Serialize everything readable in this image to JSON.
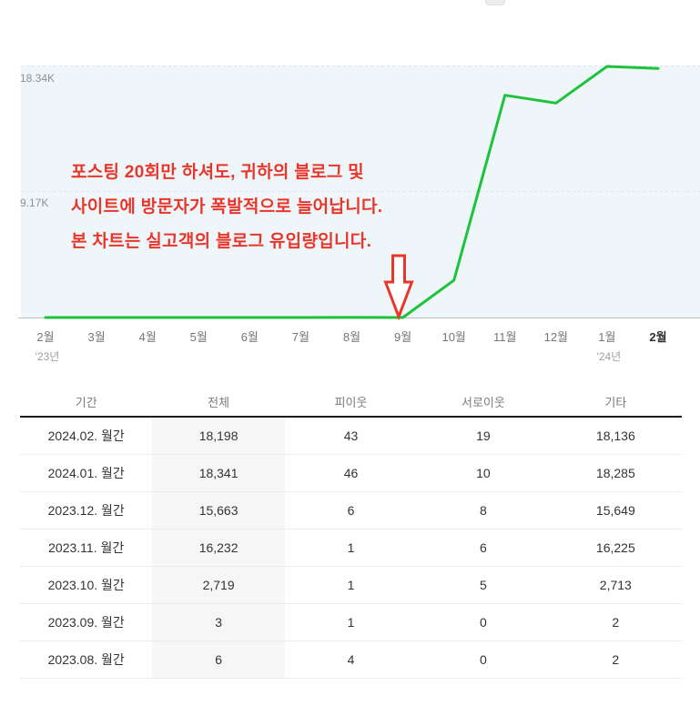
{
  "colors": {
    "line": "#1ec23b",
    "annotation_red": "#e9362b",
    "chart_bg": "#eef6f9",
    "gridline": "#dde5e8",
    "axis_line": "#b7bcbe",
    "table_header_border": "#1b1b1b",
    "highlight_column_bg": "#f6f6f6"
  },
  "chart_data": {
    "type": "line",
    "title": "",
    "xlabel": "",
    "ylabel": "",
    "categories": [
      "2023.02",
      "2023.03",
      "2023.04",
      "2023.05",
      "2023.06",
      "2023.07",
      "2023.08",
      "2023.09",
      "2023.10",
      "2023.11",
      "2023.12",
      "2024.01",
      "2024.02"
    ],
    "x_tick_labels": [
      "2월",
      "3월",
      "4월",
      "5월",
      "6월",
      "7월",
      "8월",
      "9월",
      "10월",
      "11월",
      "12월",
      "1월",
      "2월"
    ],
    "x_bold_index": 12,
    "x_year_labels": [
      {
        "text": "'23년",
        "index": 0
      },
      {
        "text": "'24년",
        "index": 11
      }
    ],
    "values": [
      0,
      0,
      0,
      0,
      0,
      0,
      6,
      3,
      2719,
      16232,
      15663,
      18341,
      18198
    ],
    "ylim": [
      0,
      18341
    ],
    "y_gridlines": [
      {
        "label": "18.34K",
        "value": 18340
      },
      {
        "label": "9.17K",
        "value": 9170
      }
    ],
    "legend": "none",
    "grid": "dashed-horizontal",
    "annotation": {
      "lines": [
        "포스팅 20회만 하셔도, 귀하의 블로그 및",
        "사이트에 방문자가 폭발적으로 늘어납니다.",
        "본 차트는 실고객의 블로그 유입량입니다."
      ],
      "arrow_points_at": "9월"
    }
  },
  "table": {
    "headers": [
      "기간",
      "전체",
      "피이웃",
      "서로이웃",
      "기타"
    ],
    "highlighted_column_index": 1,
    "rows": [
      [
        "2024.02. 월간",
        "18,198",
        "43",
        "19",
        "18,136"
      ],
      [
        "2024.01. 월간",
        "18,341",
        "46",
        "10",
        "18,285"
      ],
      [
        "2023.12. 월간",
        "15,663",
        "6",
        "8",
        "15,649"
      ],
      [
        "2023.11. 월간",
        "16,232",
        "1",
        "6",
        "16,225"
      ],
      [
        "2023.10. 월간",
        "2,719",
        "1",
        "5",
        "2,713"
      ],
      [
        "2023.09. 월간",
        "3",
        "1",
        "0",
        "2"
      ],
      [
        "2023.08. 월간",
        "6",
        "4",
        "0",
        "2"
      ]
    ]
  }
}
